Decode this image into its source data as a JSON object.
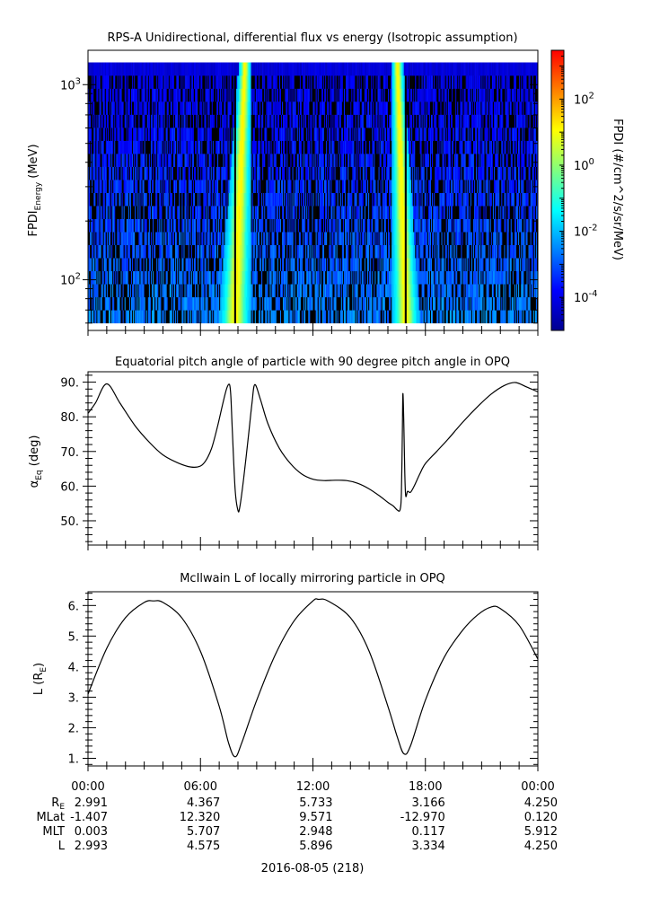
{
  "figure": {
    "date_label": "2016-08-05 (218)"
  },
  "chart_data": [
    {
      "type": "heatmap",
      "title": "RPS-A Unidirectional, differential flux vs energy (Isotropic assumption)",
      "ylabel_main": "FPDI",
      "ylabel_sub": "Energy",
      "ylabel_unit": " (MeV)",
      "yscale": "log",
      "ylim": [
        55,
        1500
      ],
      "y_ticks": [
        {
          "value": 100,
          "base": "10",
          "exp": "2"
        },
        {
          "value": 1000,
          "base": "10",
          "exp": "3"
        }
      ],
      "x_range_hours": [
        0,
        24
      ],
      "energy_range_MeV": [
        60,
        1300
      ],
      "colorbar": {
        "label": "FPDI (#/cm^2/s/sr/MeV)",
        "scale": "log",
        "range": [
          1e-05,
          3000
        ],
        "ticks": [
          {
            "base": "10",
            "exp": "2"
          },
          {
            "base": "10",
            "exp": "0"
          },
          {
            "base": "10",
            "exp": "-2"
          },
          {
            "base": "10",
            "exp": "-4"
          }
        ],
        "tick_values": [
          100,
          1,
          0.01,
          0.0001
        ],
        "colors": [
          "#00008f",
          "#0000ff",
          "#0080ff",
          "#00ffff",
          "#80ff80",
          "#ffff00",
          "#ff8000",
          "#ff0000"
        ]
      },
      "flux_peaks": [
        {
          "center_hour": 7.85,
          "peak_flux": 5
        },
        {
          "center_hour": 16.95,
          "peak_flux": 5
        }
      ]
    },
    {
      "type": "line",
      "title": "Equatorial pitch angle of particle with 90 degree pitch angle in OPQ",
      "ylabel_main": "α",
      "ylabel_sub": "Eq",
      "ylabel_unit": " (deg)",
      "ylim": [
        43,
        93
      ],
      "y_ticks": [
        "50.",
        "60.",
        "70.",
        "80.",
        "90."
      ],
      "series": [
        {
          "x_hours": [
            0,
            0.4,
            1,
            1.7,
            2.5,
            3.3,
            4,
            4.8,
            5.5,
            6,
            6.3,
            6.6,
            6.9,
            7.2,
            7.4,
            7.55,
            7.62,
            7.7,
            7.85,
            8,
            8.1,
            8.3,
            8.55,
            8.75,
            8.9,
            9.2,
            9.6,
            10.2,
            10.8,
            11.4,
            12,
            12.6,
            13.2,
            13.8,
            14.4,
            15,
            15.6,
            16,
            16.3,
            16.5,
            16.65,
            16.72,
            16.77,
            16.8,
            16.85,
            16.9,
            16.95,
            17.05,
            17.2,
            17.4,
            17.7,
            18,
            18.6,
            19.2,
            20,
            20.8,
            21.5,
            22.2,
            22.8,
            23.4,
            24
          ],
          "y_deg": [
            81,
            84,
            89.5,
            84,
            77.5,
            72.5,
            69,
            66.7,
            65.5,
            65.8,
            67.5,
            71,
            77,
            84,
            88.2,
            89.3,
            86,
            76,
            59,
            53,
            54,
            62,
            74,
            84,
            89.3,
            85,
            78,
            71,
            66.5,
            63.5,
            62,
            61.6,
            61.7,
            61.6,
            60.8,
            59.2,
            57,
            55.3,
            54.2,
            53.1,
            53.2,
            58,
            75,
            86.7,
            78,
            64,
            57.2,
            58.5,
            58.2,
            60,
            63.5,
            66.5,
            70,
            73.5,
            78.5,
            83,
            86.5,
            89,
            89.9,
            88.6,
            87.2
          ]
        }
      ]
    },
    {
      "type": "line",
      "title": "McIlwain L of locally mirroring particle in OPQ",
      "ylabel_main": "L (R",
      "ylabel_sub": "E",
      "ylabel_unit": ")",
      "ylim": [
        0.75,
        6.45
      ],
      "y_ticks": [
        "1.",
        "2.",
        "3.",
        "4.",
        "5.",
        "6."
      ],
      "series": [
        {
          "x_hours": [
            0,
            1,
            2,
            3,
            3.5,
            4,
            5,
            6,
            7,
            7.5,
            7.85,
            8.2,
            9,
            10,
            11,
            12,
            12.3,
            12.8,
            14,
            15,
            16,
            16.5,
            16.85,
            17.2,
            18,
            19,
            20,
            20.8,
            21.5,
            22,
            23,
            24
          ],
          "y": [
            3.1,
            4.6,
            5.6,
            6.1,
            6.15,
            6.1,
            5.6,
            4.5,
            2.7,
            1.5,
            1.05,
            1.5,
            2.9,
            4.4,
            5.5,
            6.15,
            6.2,
            6.15,
            5.6,
            4.5,
            2.7,
            1.7,
            1.15,
            1.4,
            2.9,
            4.3,
            5.2,
            5.7,
            5.95,
            5.9,
            5.35,
            4.25
          ]
        }
      ]
    }
  ],
  "ephemeris": {
    "x_tick_labels": [
      "00:00",
      "06:00",
      "12:00",
      "18:00",
      "00:00"
    ],
    "rows": [
      {
        "label": "R",
        "label_sub": "E",
        "values": [
          "2.991",
          "4.367",
          "5.733",
          "3.166",
          "4.250"
        ]
      },
      {
        "label": "MLat",
        "label_sub": "",
        "values": [
          "-1.407",
          "12.320",
          "9.571",
          "-12.970",
          "0.120"
        ]
      },
      {
        "label": "MLT",
        "label_sub": "",
        "values": [
          "0.003",
          "5.707",
          "2.948",
          "0.117",
          "5.912"
        ]
      },
      {
        "label": "L",
        "label_sub": "",
        "values": [
          "2.993",
          "4.575",
          "5.896",
          "3.334",
          "4.250"
        ]
      }
    ]
  }
}
